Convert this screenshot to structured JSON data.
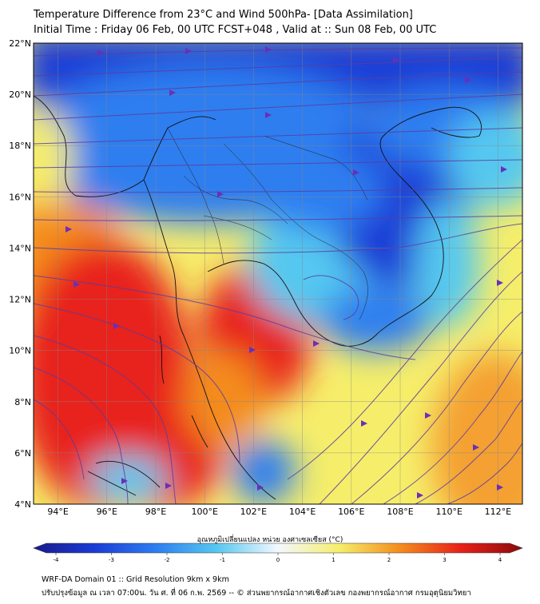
{
  "header": {
    "title": "Temperature Difference from 23°C and Wind 500hPa- [Data Assimilation]",
    "subtitle": "Initial Time : Friday 06 Feb, 00 UTC FCST+048 , Valid at ::  Sun 08 Feb, 00 UTC"
  },
  "map": {
    "lat_labels": [
      "22°N",
      "20°N",
      "18°N",
      "16°N",
      "14°N",
      "12°N",
      "10°N",
      "8°N",
      "6°N",
      "4°N"
    ],
    "lon_labels": [
      "94°E",
      "96°E",
      "98°E",
      "100°E",
      "102°E",
      "104°E",
      "106°E",
      "108°E",
      "110°E",
      "112°E"
    ],
    "lat_range": [
      4,
      22
    ],
    "lon_range": [
      93,
      113
    ],
    "colors": {
      "strong_cold": "#1a3cd6",
      "cold": "#2d7ef0",
      "cool": "#55c8f0",
      "neutral": "#f4f8ff",
      "warm": "#f6ee6a",
      "orange": "#f48c1c",
      "hot": "#e8201a",
      "streamline": "#5a3d9e",
      "arrow": "#6a2fb8"
    }
  },
  "colorbar": {
    "label": "อุณหภูมิเปลี่ยนแปลง หน่วย องศาเซลเซียส (°C)",
    "ticks": [
      "-4",
      "-3",
      "-2",
      "-1",
      "0",
      "1",
      "2",
      "3",
      "4"
    ],
    "range": [
      -4,
      4
    ],
    "stops": [
      "#1a1a8c",
      "#1a3cd6",
      "#2d7ef0",
      "#55c8f0",
      "#f4f8ff",
      "#f6ee6a",
      "#f48c1c",
      "#e8201a",
      "#8a0a0a"
    ]
  },
  "footer": {
    "line1": "WRF-DA Domain 01 :: Grid Resolution 9km x 9km",
    "line2": "ปรับปรุงข้อมูล ณ เวลา 07:00น. วัน ศ. ที่ 06 ก.พ. 2569 -- © ส่วนพยากรณ์อากาศเชิงตัวเลข กองพยากรณ์อากาศ กรมอุตุนิยมวิทยา"
  }
}
